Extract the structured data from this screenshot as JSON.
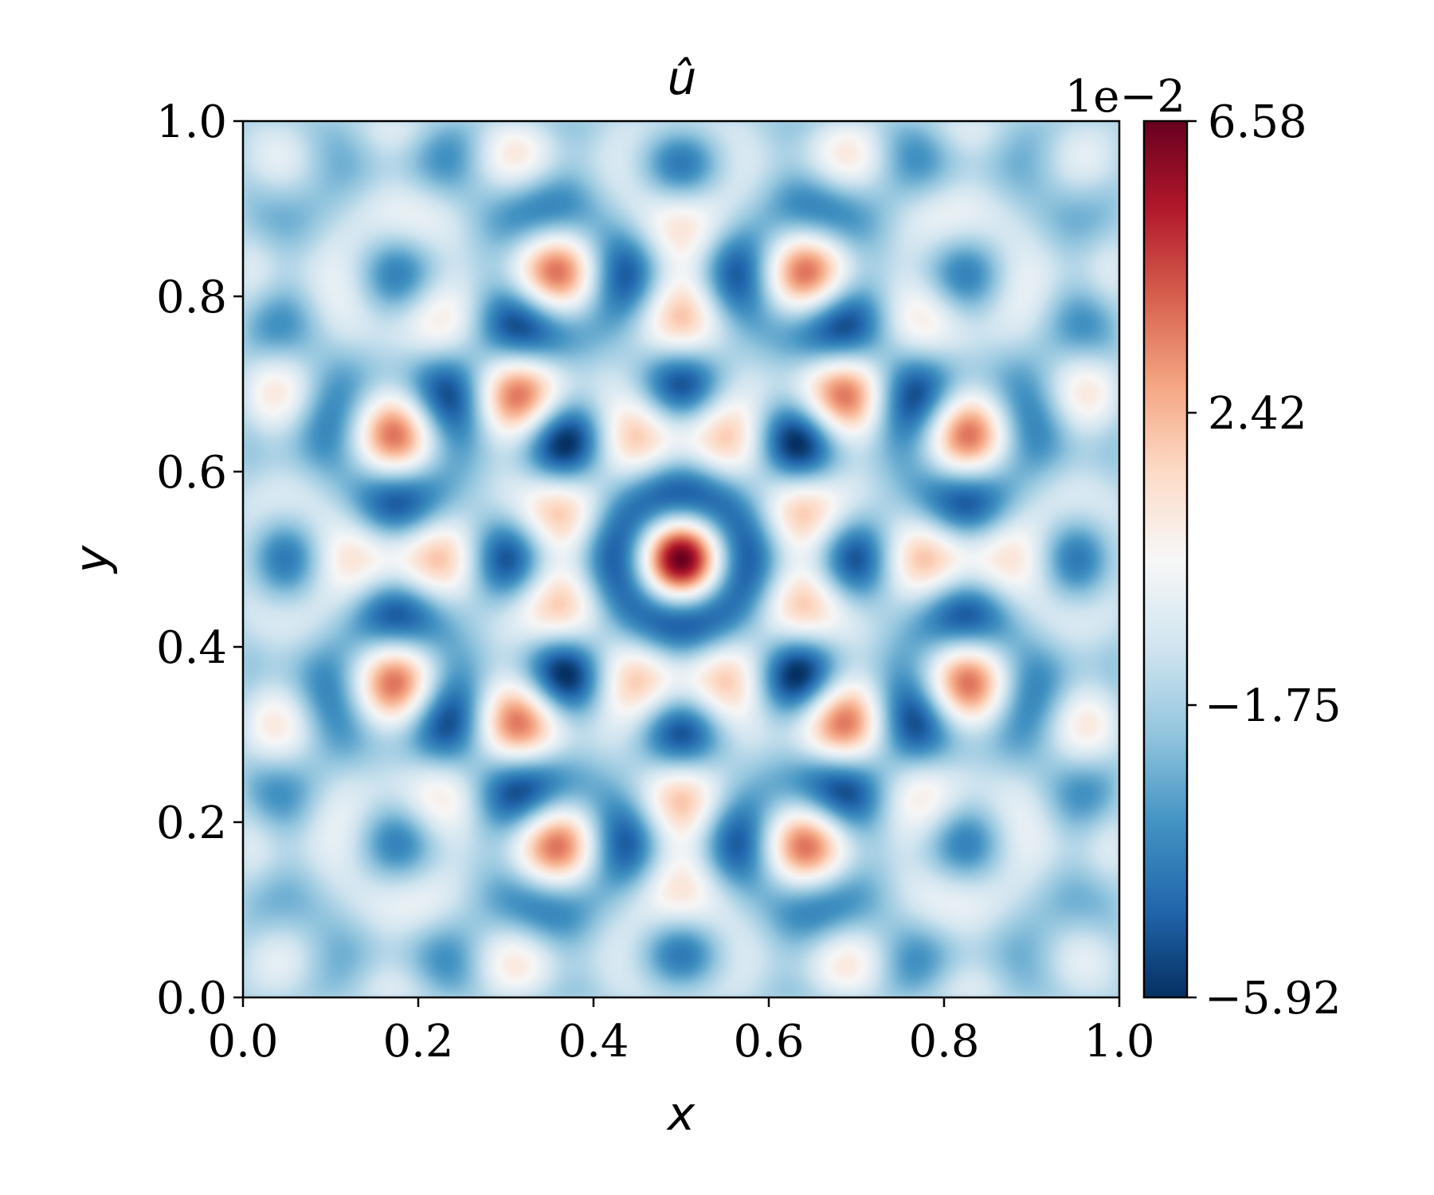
{
  "chart_data": {
    "type": "heatmap",
    "title": "û",
    "xlabel": "x",
    "ylabel": "y",
    "xlim": [
      0.0,
      1.0
    ],
    "ylim": [
      0.0,
      1.0
    ],
    "x_ticks": [
      0.0,
      0.2,
      0.4,
      0.6,
      0.8,
      1.0
    ],
    "x_tick_labels": [
      "0.0",
      "0.2",
      "0.4",
      "0.6",
      "0.8",
      "1.0"
    ],
    "y_ticks": [
      0.0,
      0.2,
      0.4,
      0.6,
      0.8,
      1.0
    ],
    "y_tick_labels": [
      "0.0",
      "0.2",
      "0.4",
      "0.6",
      "0.8",
      "1.0"
    ],
    "colormap": "RdBu_r",
    "colormap_stops": [
      "#053061",
      "#2166ac",
      "#4393c3",
      "#92c5de",
      "#d1e5f0",
      "#f7f7f7",
      "#fddbc7",
      "#f4a582",
      "#d6604d",
      "#b2182b",
      "#67001f"
    ],
    "colorbar": {
      "min": -5.92,
      "max": 6.58,
      "ticks": [
        6.58,
        2.42,
        -1.75,
        -5.92
      ],
      "tick_labels": [
        "6.58",
        "2.42",
        "−1.75",
        "−5.92"
      ],
      "offset_label": "1e−2"
    },
    "grid": false,
    "symmetry": "square (D4) symmetric about center (0.5, 0.5)",
    "center_value": 6.58,
    "min_value": -5.92
  }
}
